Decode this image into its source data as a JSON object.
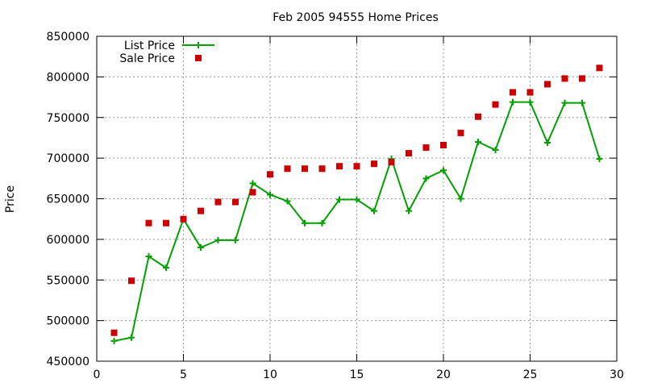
{
  "chart_data": {
    "type": "line",
    "title": "Feb 2005 94555 Home Prices",
    "xlabel": "",
    "ylabel": "Price",
    "xlim": [
      0,
      30
    ],
    "ylim": [
      450000,
      850000
    ],
    "xticks": [
      0,
      5,
      10,
      15,
      20,
      25,
      30
    ],
    "yticks": [
      450000,
      500000,
      550000,
      600000,
      650000,
      700000,
      750000,
      800000,
      850000
    ],
    "grid": true,
    "legend_position": "top-left",
    "series": [
      {
        "name": "List Price",
        "style": "line-points",
        "color": "#00a000",
        "x": [
          1,
          2,
          3,
          4,
          5,
          6,
          7,
          8,
          9,
          10,
          11,
          12,
          13,
          14,
          15,
          16,
          17,
          18,
          19,
          20,
          21,
          22,
          23,
          24,
          25,
          26,
          27,
          28,
          29
        ],
        "y": [
          475000,
          479000,
          579000,
          565000,
          625000,
          590000,
          599000,
          599000,
          669000,
          655000,
          647000,
          620000,
          620000,
          649000,
          649000,
          635000,
          699000,
          635000,
          675000,
          685000,
          650000,
          720000,
          710000,
          769000,
          769000,
          719000,
          768000,
          768000,
          699000
        ]
      },
      {
        "name": "Sale Price",
        "style": "points",
        "color": "#cc0000",
        "x": [
          1,
          2,
          3,
          4,
          5,
          6,
          7,
          8,
          9,
          10,
          11,
          12,
          13,
          14,
          15,
          16,
          17,
          18,
          19,
          20,
          21,
          22,
          23,
          24,
          25,
          26,
          27,
          28,
          29
        ],
        "y": [
          485000,
          549000,
          620000,
          620000,
          625000,
          635000,
          646000,
          646000,
          658000,
          680000,
          687000,
          687000,
          687000,
          690000,
          690000,
          693000,
          695000,
          706000,
          713000,
          716000,
          731000,
          751000,
          766000,
          781000,
          781000,
          791000,
          798000,
          798000,
          811000
        ]
      }
    ]
  }
}
